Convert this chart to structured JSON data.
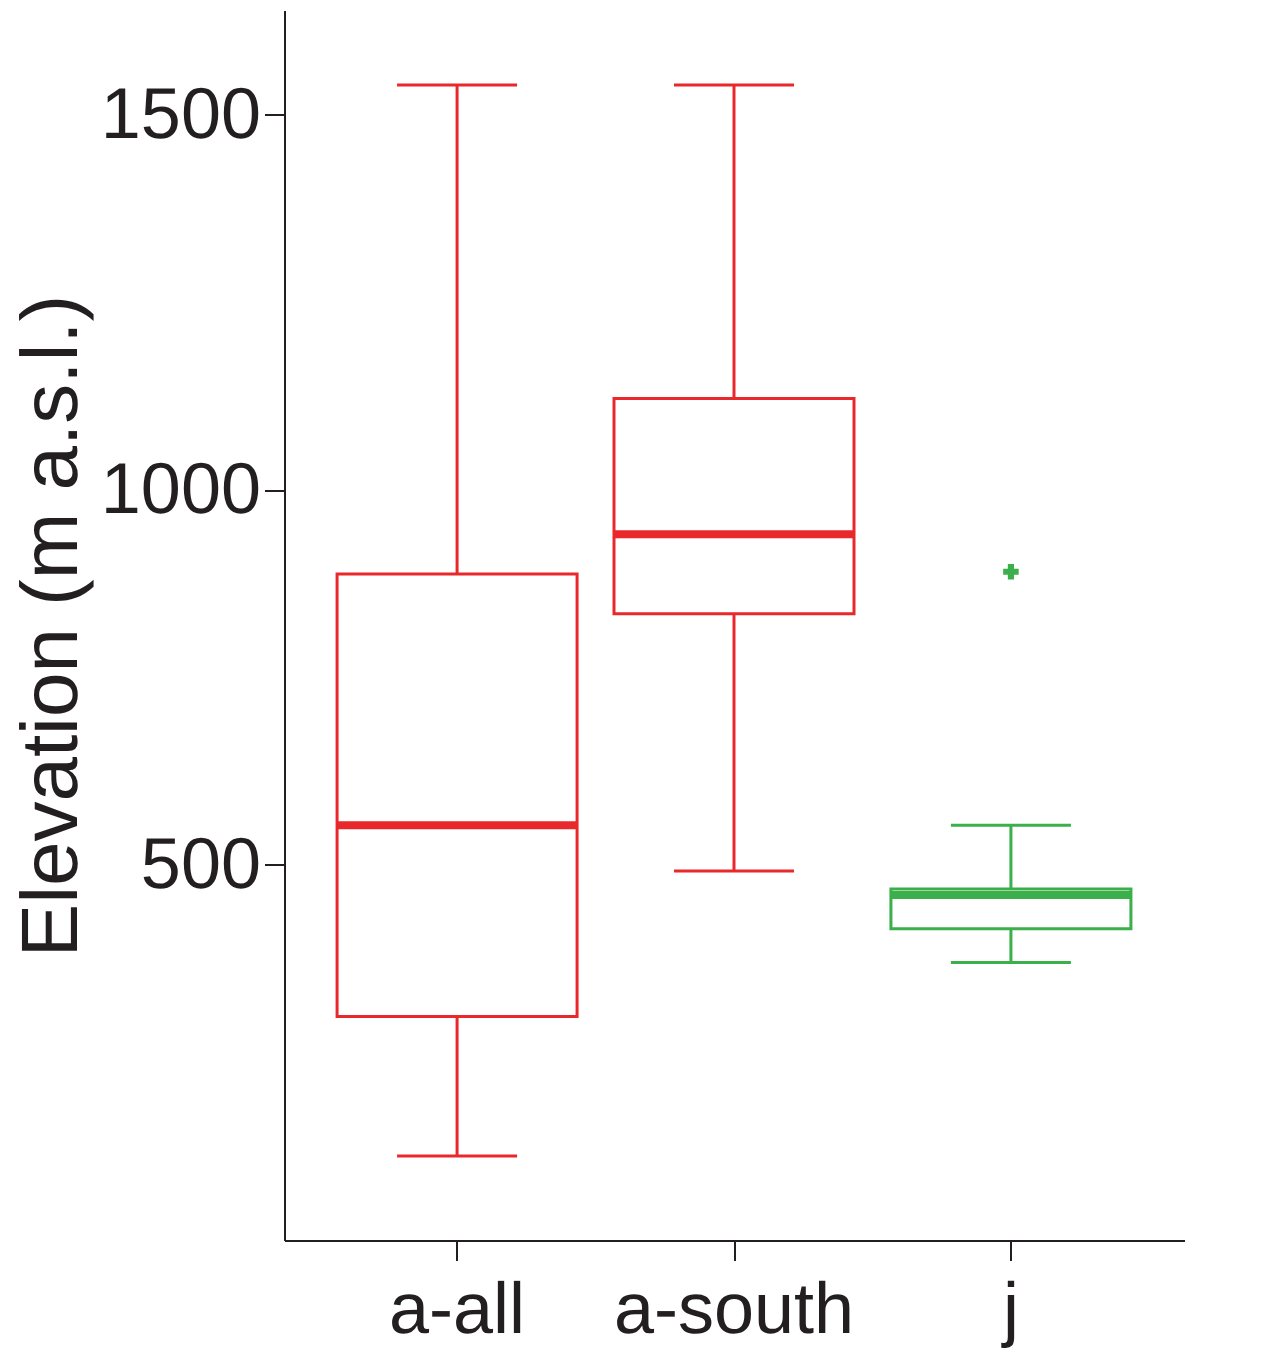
{
  "chart_data": {
    "type": "box",
    "ylabel": "Elevation (m a.s.l.)",
    "categories": [
      "a-all",
      "a-south",
      "j"
    ],
    "boxes": [
      {
        "low": 112,
        "q1": 298,
        "median": 553,
        "q3": 888,
        "high": 1540
      },
      {
        "low": 492,
        "q1": 835,
        "median": 941,
        "q3": 1122,
        "high": 1540
      },
      {
        "low": 370,
        "q1": 415,
        "median": 460,
        "q3": 468,
        "high": 553,
        "outliers": [
          891
        ]
      }
    ],
    "colors": [
      "#e8282b",
      "#e8282b",
      "#3aaf4a"
    ],
    "ylim": [
      0,
      1640
    ],
    "yticks": [
      500,
      1000,
      1500
    ],
    "grid": false
  }
}
